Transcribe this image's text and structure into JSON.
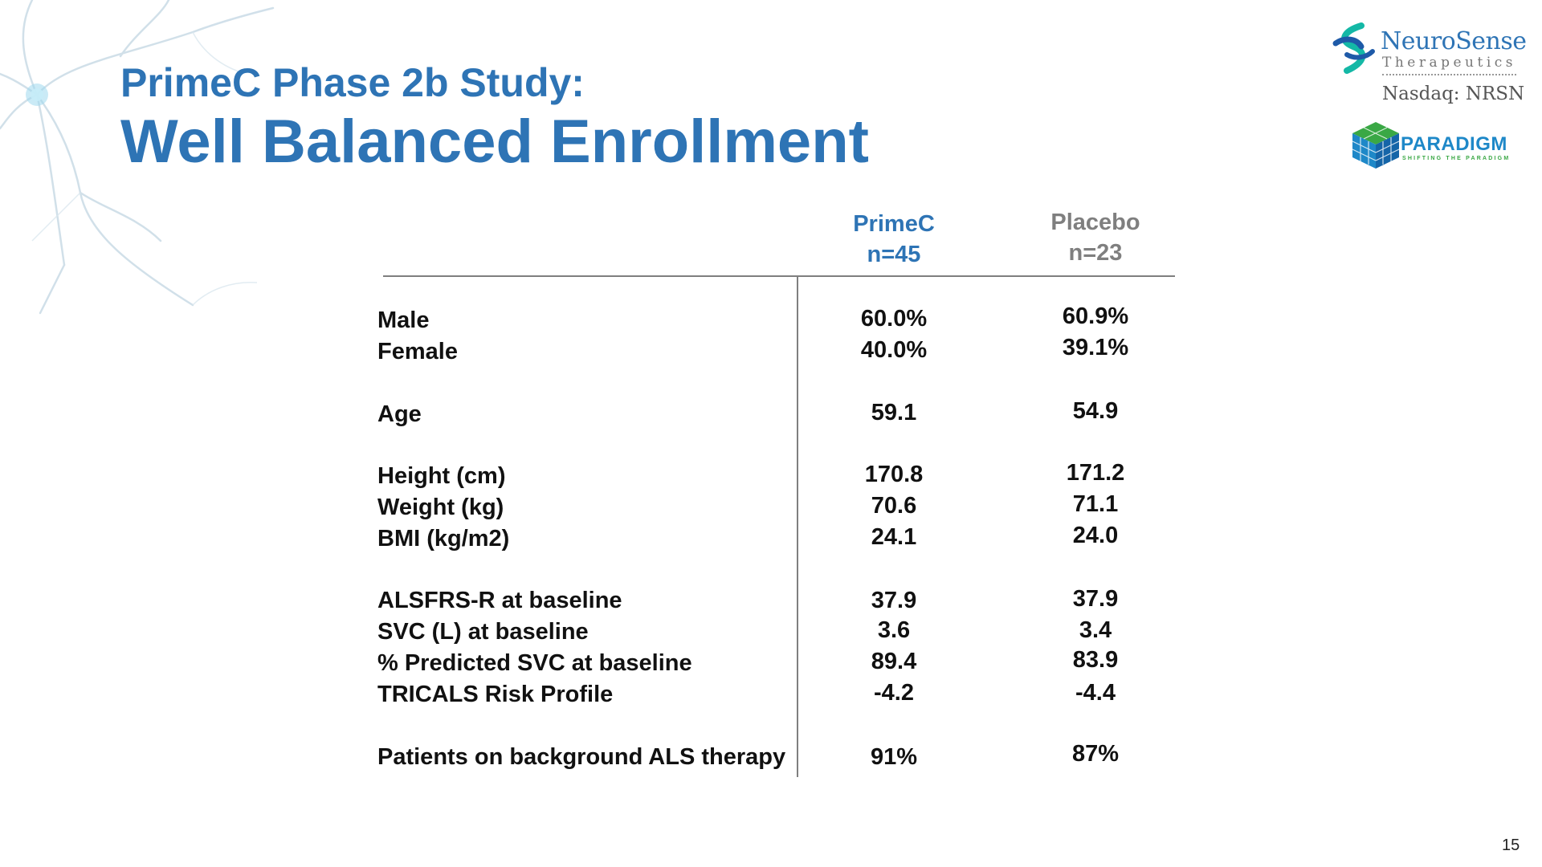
{
  "slide": {
    "title_line1": "PrimeC Phase 2b Study:",
    "title_line2": "Well Balanced Enrollment",
    "page_number": "15"
  },
  "logos": {
    "neurosense_name": "NeuroSense",
    "neurosense_sub": "Therapeutics",
    "neurosense_ticker": "Nasdaq: NRSN",
    "paradigm_name": "PARADIGM",
    "paradigm_tagline": "SHIFTING THE PARADIGM"
  },
  "table": {
    "columns": [
      {
        "name": "PrimeC",
        "n": "n=45"
      },
      {
        "name": "Placebo",
        "n": "n=23"
      }
    ],
    "rows": [
      {
        "label": "Male",
        "primec": "60.0%",
        "placebo": "60.9%"
      },
      {
        "label": "Female",
        "primec": "40.0%",
        "placebo": "39.1%"
      },
      {
        "label": "Age",
        "primec": "59.1",
        "placebo": "54.9"
      },
      {
        "label": "Height (cm)",
        "primec": "170.8",
        "placebo": "171.2"
      },
      {
        "label": "Weight (kg)",
        "primec": "70.6",
        "placebo": "71.1"
      },
      {
        "label": "BMI (kg/m2)",
        "primec": "24.1",
        "placebo": "24.0"
      },
      {
        "label": "ALSFRS-R at baseline",
        "primec": "37.9",
        "placebo": "37.9"
      },
      {
        "label": "SVC (L) at baseline",
        "primec": "3.6",
        "placebo": "3.4"
      },
      {
        "label": "% Predicted SVC at baseline",
        "primec": "89.4",
        "placebo": "83.9"
      },
      {
        "label": "TRICALS Risk Profile",
        "primec": "-4.2",
        "placebo": "-4.4"
      },
      {
        "label": "Patients on background ALS therapy",
        "primec": "91%",
        "placebo": "87%"
      }
    ]
  },
  "colors": {
    "title_blue": "#2e74b5",
    "placebo_gray": "#7f7f7f",
    "paradigm_blue": "#1e88c8",
    "paradigm_green": "#3aa845"
  },
  "icons": {
    "neuron": "neuron-decoration-icon",
    "neurosense": "neurosense-mark-icon",
    "paradigm": "paradigm-cube-icon"
  }
}
